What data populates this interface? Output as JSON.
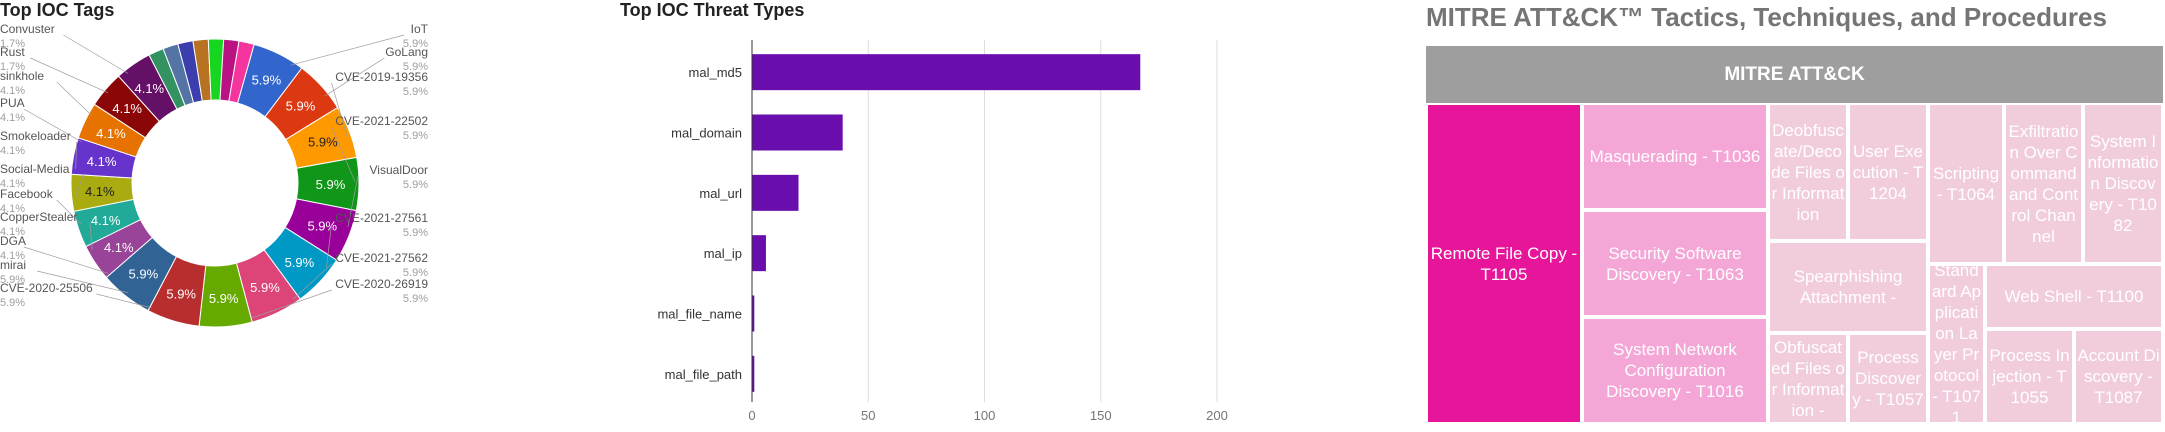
{
  "donut": {
    "title": "Top IOC Tags",
    "chart_data": {
      "type": "pie",
      "title": "Top IOC Tags",
      "slices": [
        {
          "label": "IoT",
          "value": 5.9,
          "display": "5.9%",
          "color": "#3366cc"
        },
        {
          "label": "GoLang",
          "value": 5.9,
          "display": "5.9%",
          "color": "#dc3912"
        },
        {
          "label": "CVE-2019-19356",
          "value": 5.9,
          "display": "5.9%",
          "color": "#ff9900"
        },
        {
          "label": "CVE-2021-22502",
          "value": 5.9,
          "display": "5.9%",
          "color": "#109618"
        },
        {
          "label": "VisualDoor",
          "value": 5.9,
          "display": "5.9%",
          "color": "#990099"
        },
        {
          "label": "CVE-2021-27561",
          "value": 5.9,
          "display": "5.9%",
          "color": "#0099c6"
        },
        {
          "label": "CVE-2021-27562",
          "value": 5.9,
          "display": "5.9%",
          "color": "#dd4477"
        },
        {
          "label": "CVE-2020-26919",
          "value": 5.9,
          "display": "5.9%",
          "color": "#66aa00"
        },
        {
          "label": "CVE-2020-25506",
          "value": 5.9,
          "display": "5.9%",
          "color": "#b82e2e"
        },
        {
          "label": "mirai",
          "value": 5.9,
          "display": "5.9%",
          "color": "#316395"
        },
        {
          "label": "DGA",
          "value": 4.1,
          "display": "4.1%",
          "color": "#994499"
        },
        {
          "label": "CopperStealer",
          "value": 4.1,
          "display": "4.1%",
          "color": "#22aa99"
        },
        {
          "label": "Facebook",
          "value": 4.1,
          "display": "4.1%",
          "color": "#aaaa11"
        },
        {
          "label": "Social-Media",
          "value": 4.1,
          "display": "4.1%",
          "color": "#6633cc"
        },
        {
          "label": "Smokeloader",
          "value": 4.1,
          "display": "4.1%",
          "color": "#e67300"
        },
        {
          "label": "PUA",
          "value": 4.1,
          "display": "4.1%",
          "color": "#8b0707"
        },
        {
          "label": "sinkhole",
          "value": 4.1,
          "display": "4.1%",
          "color": "#651067"
        },
        {
          "label": "",
          "value": 1.7,
          "display": "",
          "color": "#329262"
        },
        {
          "label": "",
          "value": 1.7,
          "display": "",
          "color": "#5574a6"
        },
        {
          "label": "",
          "value": 1.7,
          "display": "",
          "color": "#3b3eac"
        },
        {
          "label": "",
          "value": 1.7,
          "display": "",
          "color": "#b77322"
        },
        {
          "label": "Rust",
          "value": 1.7,
          "display": "",
          "color": "#16d620"
        },
        {
          "label": "Convuster",
          "value": 1.7,
          "display": "",
          "color": "#b91383"
        },
        {
          "label": "",
          "value": 1.7,
          "display": "",
          "color": "#f4359e"
        }
      ],
      "legend_right": [
        {
          "name": "IoT",
          "pct": "5.9%"
        },
        {
          "name": "GoLang",
          "pct": "5.9%"
        },
        {
          "name": "CVE-2019-19356",
          "pct": "5.9%"
        },
        {
          "name": "CVE-2021-22502",
          "pct": "5.9%"
        },
        {
          "name": "VisualDoor",
          "pct": "5.9%"
        },
        {
          "name": "CVE-2021-27561",
          "pct": "5.9%"
        },
        {
          "name": "CVE-2021-27562",
          "pct": "5.9%"
        },
        {
          "name": "CVE-2020-26919",
          "pct": "5.9%"
        }
      ],
      "legend_left": [
        {
          "name": "Convuster",
          "pct": "1.7%"
        },
        {
          "name": "Rust",
          "pct": "1.7%"
        },
        {
          "name": "sinkhole",
          "pct": "4.1%"
        },
        {
          "name": "PUA",
          "pct": "4.1%"
        },
        {
          "name": "Smokeloader",
          "pct": "4.1%"
        },
        {
          "name": "Social-Media",
          "pct": "4.1%"
        },
        {
          "name": "Facebook",
          "pct": "4.1%"
        },
        {
          "name": "CopperStealer",
          "pct": "4.1%"
        },
        {
          "name": "DGA",
          "pct": "4.1%"
        },
        {
          "name": "mirai",
          "pct": "5.9%"
        },
        {
          "name": "CVE-2020-25506",
          "pct": "5.9%"
        }
      ]
    }
  },
  "bars": {
    "title": "Top IOC Threat Types",
    "chart_data": {
      "type": "bar",
      "orientation": "horizontal",
      "title": "Top IOC Threat Types",
      "categories": [
        "mal_md5",
        "mal_domain",
        "mal_url",
        "mal_ip",
        "mal_file_name",
        "mal_file_path"
      ],
      "values": [
        167,
        39,
        20,
        6,
        1,
        1
      ],
      "xlim": [
        0,
        200
      ],
      "xticks": [
        0,
        50,
        100,
        150,
        200
      ],
      "grid": true,
      "color": "#6a0dad"
    }
  },
  "treemap": {
    "title": "MITRE ATT&CK™ Tactics, Techniques, and Procedures",
    "chart_data": {
      "type": "treemap",
      "root": "MITRE ATT&CK",
      "cells": [
        {
          "label": "Remote File Copy - T1105",
          "weight": 5
        },
        {
          "label": "Masquerading - T1036",
          "weight": 3
        },
        {
          "label": "Security Software Discovery - T1063",
          "weight": 3
        },
        {
          "label": "System Network Configuration Discovery - T1016",
          "weight": 3
        },
        {
          "label": "Deobfuscate/Decode Files or Information",
          "weight": 1
        },
        {
          "label": "User Execution - T1204",
          "weight": 1
        },
        {
          "label": "Spearphishing Attachment -",
          "weight": 1
        },
        {
          "label": "Obfuscated Files or Information -",
          "weight": 1
        },
        {
          "label": "Process Discovery - T1057",
          "weight": 1
        },
        {
          "label": "Scripting - T1064",
          "weight": 1
        },
        {
          "label": "Exfiltration Over Command and Control Channel",
          "weight": 1
        },
        {
          "label": "System Information Discovery - T1082",
          "weight": 1
        },
        {
          "label": "Standard Application Layer Protocol - T1071",
          "weight": 1
        },
        {
          "label": "Web Shell - T1100",
          "weight": 1
        },
        {
          "label": "Process Injection - T1055",
          "weight": 1
        },
        {
          "label": "Account Discovery - T1087",
          "weight": 1
        }
      ],
      "colors": {
        "max": "#e7159a",
        "mid": "#f4a6d7",
        "min": "#f1ccdd",
        "header": "#9e9e9e"
      }
    }
  }
}
